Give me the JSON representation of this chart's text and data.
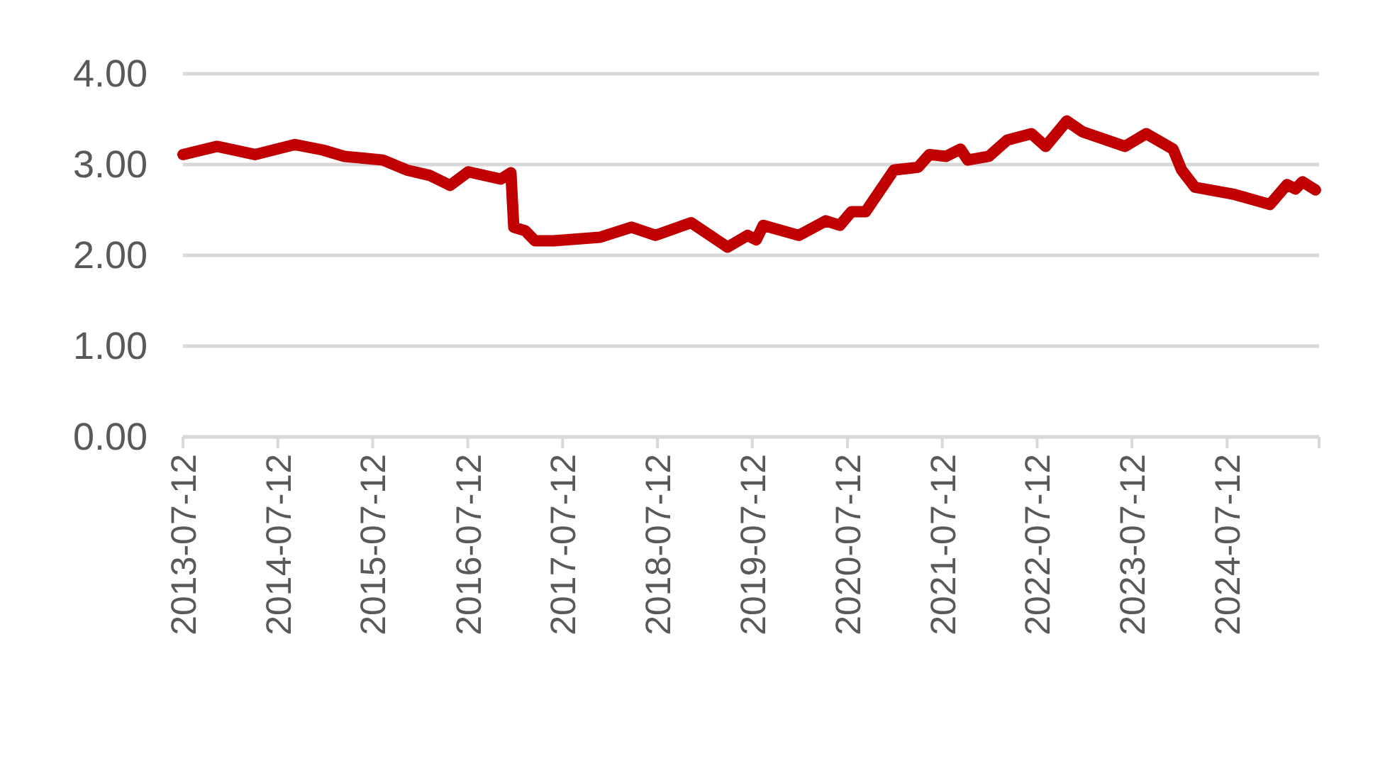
{
  "chart_data": {
    "type": "line",
    "x": [
      "2013-07-12",
      "2013-11-20",
      "2014-04-15",
      "2014-09-16",
      "2015-01-01",
      "2015-03-25",
      "2015-08-20",
      "2015-11-20",
      "2016-02-17",
      "2016-05-05",
      "2016-07-14",
      "2016-11-16",
      "2016-12-25",
      "2017-01-05",
      "2017-02-18",
      "2017-03-28",
      "2017-06-07",
      "2017-12-04",
      "2018-04-03",
      "2018-07-05",
      "2018-11-18",
      "2019-04-08",
      "2019-06-24",
      "2019-07-27",
      "2019-08-23",
      "2020-01-07",
      "2020-04-20",
      "2020-06-13",
      "2020-07-27",
      "2020-09-20",
      "2021-01-07",
      "2021-04-10",
      "2021-05-23",
      "2021-07-27",
      "2021-09-20",
      "2021-10-18",
      "2022-01-07",
      "2022-03-19",
      "2022-06-20",
      "2022-08-14",
      "2022-11-03",
      "2023-01-03",
      "2023-06-15",
      "2023-09-05",
      "2023-12-17",
      "2024-01-19",
      "2024-03-10",
      "2024-08-10",
      "2024-12-24",
      "2025-02-28",
      "2025-04-01",
      "2025-04-28",
      "2025-06-17"
    ],
    "series": [
      {
        "color": "#c00000",
        "values": [
          3.11,
          3.2,
          3.11,
          3.22,
          3.16,
          3.09,
          3.05,
          2.94,
          2.88,
          2.77,
          2.92,
          2.84,
          2.91,
          2.31,
          2.27,
          2.16,
          2.16,
          2.2,
          2.31,
          2.22,
          2.36,
          2.09,
          2.22,
          2.17,
          2.33,
          2.22,
          2.38,
          2.33,
          2.48,
          2.48,
          2.94,
          2.97,
          3.11,
          3.09,
          3.17,
          3.05,
          3.09,
          3.27,
          3.34,
          3.2,
          3.48,
          3.36,
          3.2,
          3.34,
          3.17,
          2.94,
          2.75,
          2.67,
          2.56,
          2.78,
          2.73,
          2.81,
          2.72
        ]
      }
    ],
    "xlim": [
      "2013-07-12",
      "2025-07-01"
    ],
    "xticks": [
      "2013-07-12",
      "2014-07-12",
      "2015-07-12",
      "2016-07-12",
      "2017-07-12",
      "2018-07-12",
      "2019-07-12",
      "2020-07-12",
      "2021-07-12",
      "2022-07-12",
      "2023-07-12",
      "2024-07-12"
    ],
    "ylim": [
      0,
      4
    ],
    "yticks": [
      {
        "value": 0,
        "label": "0.00"
      },
      {
        "value": 1,
        "label": "1.00"
      },
      {
        "value": 2,
        "label": "2.00"
      },
      {
        "value": 3,
        "label": "3.00"
      },
      {
        "value": 4,
        "label": "4.00"
      }
    ],
    "grid": "y",
    "marker": "none",
    "line_style": "solid"
  }
}
